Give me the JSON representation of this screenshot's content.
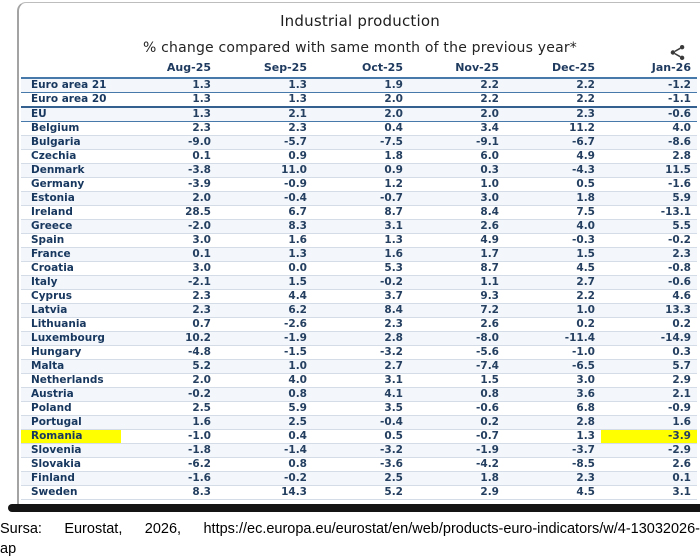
{
  "chart_data": {
    "type": "table",
    "title": "Industrial production",
    "subtitle": "% change compared with same month of the previous year*",
    "columns": [
      "Aug-25",
      "Sep-25",
      "Oct-25",
      "Nov-25",
      "Dec-25",
      "Jan-26"
    ],
    "rows": [
      {
        "label": "Euro area 21",
        "values": [
          "1.3",
          "1.3",
          "1.9",
          "2.2",
          "2.2",
          "-1.2"
        ],
        "separator": "blue"
      },
      {
        "label": "Euro area 20",
        "values": [
          "1.3",
          "1.3",
          "2.0",
          "2.2",
          "2.2",
          "-1.1"
        ],
        "separator": "dark"
      },
      {
        "label": "EU",
        "values": [
          "1.3",
          "2.1",
          "2.0",
          "2.0",
          "2.3",
          "-0.6"
        ],
        "separator": "blue"
      },
      {
        "label": "Belgium",
        "values": [
          "2.3",
          "2.3",
          "0.4",
          "3.4",
          "11.2",
          "4.0"
        ]
      },
      {
        "label": "Bulgaria",
        "values": [
          "-9.0",
          "-5.7",
          "-7.5",
          "-9.1",
          "-6.7",
          "-8.6"
        ]
      },
      {
        "label": "Czechia",
        "values": [
          "0.1",
          "0.9",
          "1.8",
          "6.0",
          "4.9",
          "2.8"
        ]
      },
      {
        "label": "Denmark",
        "values": [
          "-3.8",
          "11.0",
          "0.9",
          "0.3",
          "-4.3",
          "11.5"
        ]
      },
      {
        "label": "Germany",
        "values": [
          "-3.9",
          "-0.9",
          "1.2",
          "1.0",
          "0.5",
          "-1.6"
        ]
      },
      {
        "label": "Estonia",
        "values": [
          "2.0",
          "-0.4",
          "-0.7",
          "3.0",
          "1.8",
          "5.9"
        ]
      },
      {
        "label": "Ireland",
        "values": [
          "28.5",
          "6.7",
          "8.7",
          "8.4",
          "7.5",
          "-13.1"
        ]
      },
      {
        "label": "Greece",
        "values": [
          "-2.0",
          "8.3",
          "3.1",
          "2.6",
          "4.0",
          "5.5"
        ]
      },
      {
        "label": "Spain",
        "values": [
          "3.0",
          "1.6",
          "1.3",
          "4.9",
          "-0.3",
          "-0.2"
        ]
      },
      {
        "label": "France",
        "values": [
          "0.1",
          "1.3",
          "1.6",
          "1.7",
          "1.5",
          "2.3"
        ]
      },
      {
        "label": "Croatia",
        "values": [
          "3.0",
          "0.0",
          "5.3",
          "8.7",
          "4.5",
          "-0.8"
        ]
      },
      {
        "label": "Italy",
        "values": [
          "-2.1",
          "1.5",
          "-0.2",
          "1.1",
          "2.7",
          "-0.6"
        ]
      },
      {
        "label": "Cyprus",
        "values": [
          "2.3",
          "4.4",
          "3.7",
          "9.3",
          "2.2",
          "4.6"
        ]
      },
      {
        "label": "Latvia",
        "values": [
          "2.3",
          "6.2",
          "8.4",
          "7.2",
          "1.0",
          "13.3"
        ]
      },
      {
        "label": "Lithuania",
        "values": [
          "0.7",
          "-2.6",
          "2.3",
          "2.6",
          "0.2",
          "0.2"
        ]
      },
      {
        "label": "Luxembourg",
        "values": [
          "10.2",
          "-1.9",
          "2.8",
          "-8.0",
          "-11.4",
          "-14.9"
        ]
      },
      {
        "label": "Hungary",
        "values": [
          "-4.8",
          "-1.5",
          "-3.2",
          "-5.6",
          "-1.0",
          "0.3"
        ]
      },
      {
        "label": "Malta",
        "values": [
          "5.2",
          "1.0",
          "2.7",
          "-7.4",
          "-6.5",
          "5.7"
        ]
      },
      {
        "label": "Netherlands",
        "values": [
          "2.0",
          "4.0",
          "3.1",
          "1.5",
          "3.0",
          "2.9"
        ]
      },
      {
        "label": "Austria",
        "values": [
          "-0.2",
          "0.8",
          "4.1",
          "0.8",
          "3.6",
          "2.1"
        ]
      },
      {
        "label": "Poland",
        "values": [
          "2.5",
          "5.9",
          "3.5",
          "-0.6",
          "6.8",
          "-0.9"
        ]
      },
      {
        "label": "Portugal",
        "values": [
          "1.6",
          "2.5",
          "-0.4",
          "0.2",
          "2.8",
          "1.6"
        ]
      },
      {
        "label": "Romania",
        "values": [
          "-1.0",
          "0.4",
          "0.5",
          "-0.7",
          "1.3",
          "-3.9"
        ],
        "highlight": true
      },
      {
        "label": "Slovenia",
        "values": [
          "-1.8",
          "-1.4",
          "-3.2",
          "-1.9",
          "-3.7",
          "-2.9"
        ]
      },
      {
        "label": "Slovakia",
        "values": [
          "-6.2",
          "0.8",
          "-3.6",
          "-4.2",
          "-8.5",
          "2.6"
        ]
      },
      {
        "label": "Finland",
        "values": [
          "-1.6",
          "-0.2",
          "2.5",
          "1.8",
          "2.3",
          "0.1"
        ]
      },
      {
        "label": "Sweden",
        "values": [
          "8.3",
          "14.3",
          "5.2",
          "2.9",
          "4.5",
          "3.1"
        ]
      }
    ],
    "layout_hints": {
      "grid": "horizontal row separators",
      "highlighted_row": "Romania",
      "highlighted_cells": [
        "row label",
        "Jan-26 value"
      ]
    }
  },
  "icons": {
    "share": "share-icon"
  },
  "footer": {
    "source_line1": "Sursa: Eurostat, 2026, https://ec.europa.eu/eurostat/en/web/products-euro-indicators/w/4-13032026-",
    "source_line2": "ap"
  },
  "colors": {
    "accent_line": "#4779ab",
    "dark_separator": "#33608e",
    "label_text": "#17375e",
    "value_text": "#243f60",
    "row_stripe": "#f3f7fc",
    "highlight": "#ffff00",
    "bottom_bar": "#141414"
  }
}
